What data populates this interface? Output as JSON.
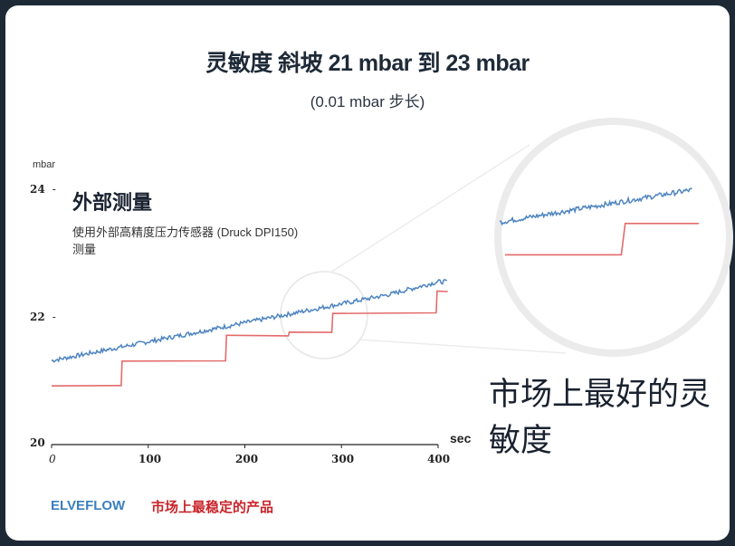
{
  "chart_data": {
    "type": "line",
    "title": "灵敏度  斜坡 21 mbar 到 23 mbar",
    "subtitle": "(0.01 mbar 步长)",
    "xlabel": "sec",
    "ylabel": "mbar",
    "xlim": [
      0,
      400
    ],
    "ylim": [
      20,
      24
    ],
    "x_ticks": [
      "0",
      "100",
      "200",
      "300",
      "400"
    ],
    "y_ticks": [
      "20",
      "22",
      "24"
    ],
    "grid": false,
    "series": [
      {
        "name": "外部测量",
        "color": "#4d84c0",
        "x": [
          0,
          50,
          100,
          150,
          200,
          250,
          300,
          350,
          400
        ],
        "y": [
          21.3,
          21.45,
          21.6,
          21.75,
          21.9,
          22.05,
          22.2,
          22.35,
          22.55
        ]
      },
      {
        "name": "ELVEFLOW",
        "color": "#e46b6b",
        "x": [
          0,
          72,
          73,
          180,
          181,
          245,
          246,
          290,
          291,
          398,
          399,
          410
        ],
        "y": [
          20.9,
          20.9,
          21.3,
          21.3,
          21.7,
          21.7,
          21.75,
          21.75,
          22.05,
          22.05,
          22.4,
          22.4
        ]
      }
    ],
    "zoom_inset": {
      "series_blue_y": [
        0.1,
        0.9
      ],
      "series_red_steps": [
        [
          0.0,
          0.08
        ],
        [
          0.6,
          0.08
        ],
        [
          0.62,
          0.85
        ],
        [
          1.0,
          0.85
        ]
      ]
    }
  },
  "annotations": {
    "external_title": "外部测量",
    "external_desc": "使用外部高精度压力传感器 (Druck DPI150) 测量",
    "big_claim": "市场上最好的灵敏度"
  },
  "footer": {
    "brand": "ELVEFLOW",
    "slogan": "市场上最稳定的产品"
  },
  "colors": {
    "blue": "#4d84c0",
    "red": "#e46b6b",
    "brand_blue": "#3b7fc0",
    "slogan_red": "#c8242a"
  }
}
